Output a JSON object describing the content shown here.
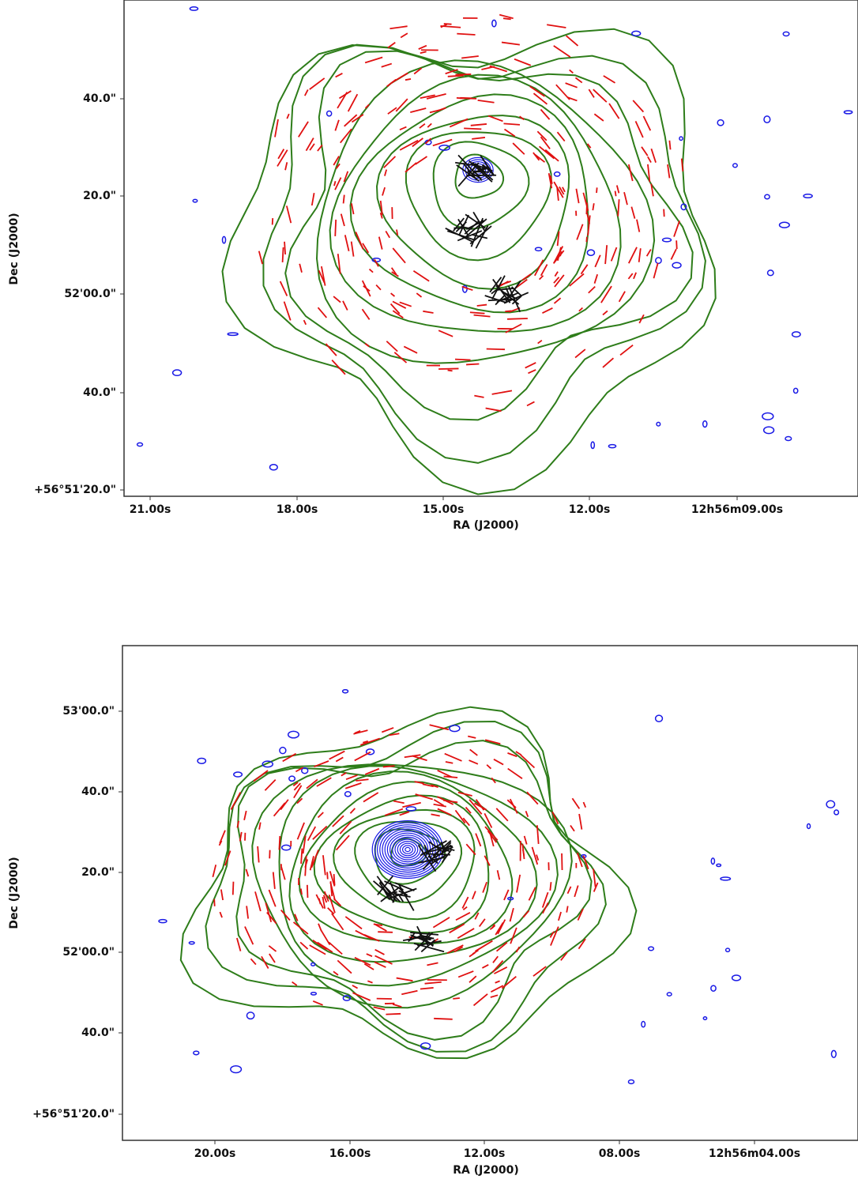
{
  "panels": [
    {
      "xlabel": "RA (J2000)",
      "ylabel": "Dec (J2000)",
      "xticks": [
        "21.00s",
        "18.00s",
        "15.00s",
        "12.00s",
        "12h56m09.00s"
      ],
      "yticks": [
        "40.0\"",
        "20.0\"",
        "52'00.0\"",
        "40.0\"",
        "+56°51'20.0\""
      ]
    },
    {
      "xlabel": "RA (J2000)",
      "ylabel": "Dec (J2000)",
      "xticks": [
        "20.00s",
        "16.00s",
        "12.00s",
        "08.00s",
        "12h56m04.00s"
      ],
      "yticks": [
        "53'00.0\"",
        "40.0\"",
        "20.0\"",
        "52'00.0\"",
        "40.0\"",
        "+56°51'20.0\""
      ]
    }
  ]
}
